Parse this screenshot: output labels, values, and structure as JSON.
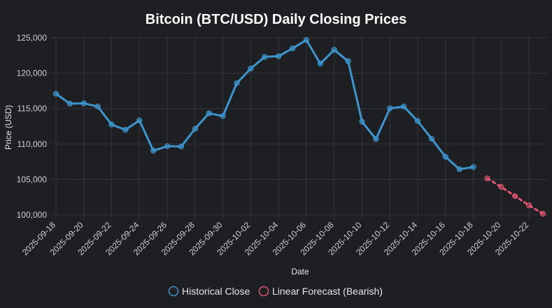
{
  "chart_data": {
    "type": "line",
    "title": "Bitcoin (BTC/USD) Daily Closing Prices",
    "xlabel": "Date",
    "ylabel": "Price (USD)",
    "ylim": [
      99300,
      125300
    ],
    "yticks": [
      100000,
      105000,
      110000,
      115000,
      120000,
      125000
    ],
    "ytick_labels": [
      "100,000",
      "105,000",
      "110,000",
      "115,000",
      "120,000",
      "125,000"
    ],
    "x": [
      "2025-09-18",
      "2025-09-19",
      "2025-09-20",
      "2025-09-21",
      "2025-09-22",
      "2025-09-23",
      "2025-09-24",
      "2025-09-25",
      "2025-09-26",
      "2025-09-27",
      "2025-09-28",
      "2025-09-29",
      "2025-09-30",
      "2025-10-01",
      "2025-10-02",
      "2025-10-03",
      "2025-10-04",
      "2025-10-05",
      "2025-10-06",
      "2025-10-07",
      "2025-10-08",
      "2025-10-09",
      "2025-10-10",
      "2025-10-11",
      "2025-10-12",
      "2025-10-13",
      "2025-10-14",
      "2025-10-15",
      "2025-10-16",
      "2025-10-17",
      "2025-10-18",
      "2025-10-19",
      "2025-10-20",
      "2025-10-21",
      "2025-10-22",
      "2025-10-23"
    ],
    "xtick_labels": [
      "2025-09-18",
      "2025-09-20",
      "2025-09-22",
      "2025-09-24",
      "2025-09-26",
      "2025-09-28",
      "2025-09-30",
      "2025-10-02",
      "2025-10-04",
      "2025-10-06",
      "2025-10-08",
      "2025-10-10",
      "2025-10-12",
      "2025-10-14",
      "2025-10-16",
      "2025-10-18",
      "2025-10-20",
      "2025-10-22"
    ],
    "grid": true,
    "legend_position": "bottom",
    "series": [
      {
        "name": "Historical Close",
        "color": "#3e95cd",
        "style": "solid",
        "x": [
          "2025-09-18",
          "2025-09-19",
          "2025-09-20",
          "2025-09-21",
          "2025-09-22",
          "2025-09-23",
          "2025-09-24",
          "2025-09-25",
          "2025-09-26",
          "2025-09-27",
          "2025-09-28",
          "2025-09-29",
          "2025-09-30",
          "2025-10-01",
          "2025-10-02",
          "2025-10-03",
          "2025-10-04",
          "2025-10-05",
          "2025-10-06",
          "2025-10-07",
          "2025-10-08",
          "2025-10-09",
          "2025-10-10",
          "2025-10-11",
          "2025-10-12",
          "2025-10-13",
          "2025-10-14",
          "2025-10-15",
          "2025-10-16",
          "2025-10-17",
          "2025-10-18"
        ],
        "values": [
          117100,
          115700,
          115750,
          115300,
          112750,
          112000,
          113350,
          109050,
          109700,
          109650,
          112150,
          114350,
          113950,
          118600,
          120650,
          122300,
          122400,
          123500,
          124700,
          121350,
          123300,
          121700,
          113150,
          110700,
          115050,
          115300,
          113250,
          110750,
          108200,
          106450,
          106750
        ]
      },
      {
        "name": "Linear Forecast (Bearish)",
        "color": "#e05570",
        "style": "dashed",
        "x": [
          "2025-10-19",
          "2025-10-20",
          "2025-10-21",
          "2025-10-22",
          "2025-10-23"
        ],
        "values": [
          105150,
          103950,
          102650,
          101350,
          100150
        ]
      }
    ]
  }
}
